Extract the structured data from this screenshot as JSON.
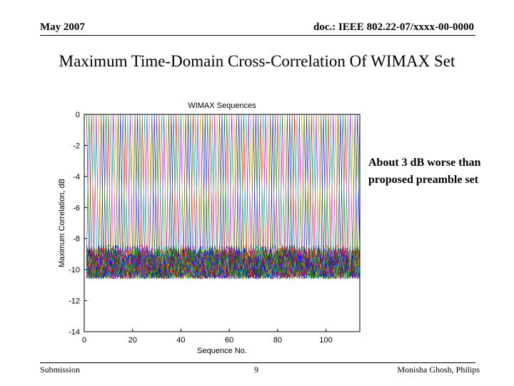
{
  "header": {
    "date": "May 2007",
    "doc": "doc.: IEEE 802.22-07/xxxx-00-0000"
  },
  "slide": {
    "title": "Maximum Time-Domain Cross-Correlation Of WIMAX Set",
    "annotation_line1": "About 3 dB worse than",
    "annotation_line2": "proposed preamble set"
  },
  "footer": {
    "left": "Submission",
    "page": "9",
    "author": "Monisha Ghosh, Philips"
  },
  "chart_data": {
    "type": "line",
    "title": "WIMAX Sequences",
    "xlabel": "Sequence No.",
    "ylabel": "Maximum Correlation, dB",
    "xlim": [
      0,
      114
    ],
    "ylim": [
      -14,
      0
    ],
    "xticks": [
      0,
      20,
      40,
      60,
      80,
      100
    ],
    "yticks": [
      0,
      -2,
      -4,
      -6,
      -8,
      -10,
      -12,
      -14
    ],
    "num_series": 114,
    "x": "1..114",
    "self_correlation_peak_dB": 0,
    "typical_cross_correlation_dB": -9.8,
    "cross_correlation_range_dB": [
      -10.6,
      -8.4
    ],
    "note": "Each of 114 series peaks at 0 dB at its own sequence index and stays near -10 dB elsewhere"
  }
}
